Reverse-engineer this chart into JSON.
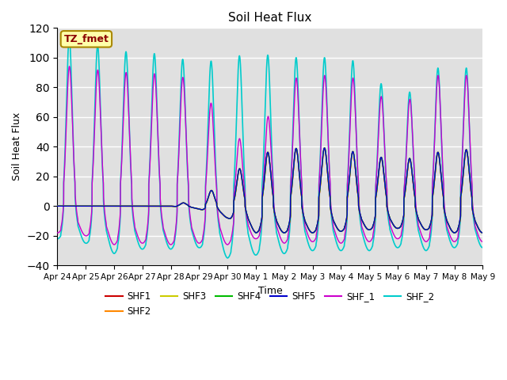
{
  "title": "Soil Heat Flux",
  "xlabel": "Time",
  "ylabel": "Soil Heat Flux",
  "ylim": [
    -40,
    120
  ],
  "background_color": "#e0e0e0",
  "grid_color": "white",
  "legend_labels": [
    "SHF1",
    "SHF2",
    "SHF3",
    "SHF4",
    "SHF5",
    "SHF_1",
    "SHF_2"
  ],
  "legend_colors": [
    "#cc0000",
    "#ff8800",
    "#cccc00",
    "#00bb00",
    "#0000cc",
    "#cc00cc",
    "#00cccc"
  ],
  "annotation_text": "TZ_fmet",
  "annotation_bg": "#ffffaa",
  "annotation_border": "#aa8800",
  "tick_labels": [
    "Apr 24",
    "Apr 25",
    "Apr 26",
    "Apr 27",
    "Apr 28",
    "Apr 29",
    "Apr 30",
    "May 1",
    "May 2",
    "May 3",
    "May 4",
    "May 5",
    "May 6",
    "May 7",
    "May 8",
    "May 9"
  ],
  "num_days": 15,
  "points_per_day": 288
}
